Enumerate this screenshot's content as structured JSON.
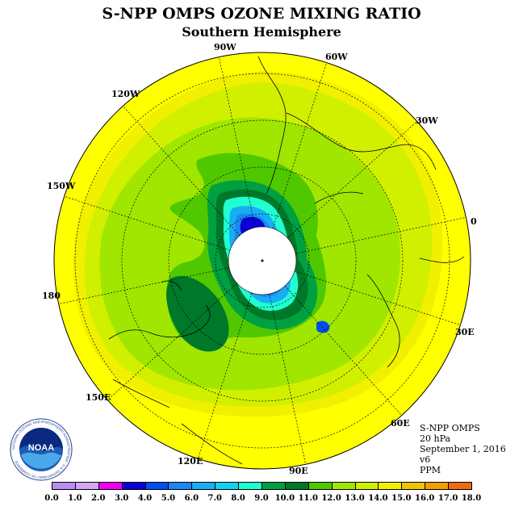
{
  "title": "S-NPP OMPS OZONE MIXING RATIO",
  "subtitle": "Southern Hemisphere",
  "longitude_labels": [
    "90W",
    "60W",
    "120W",
    "30W",
    "150W",
    "0",
    "180",
    "30E",
    "150E",
    "60E",
    "120E",
    "90E"
  ],
  "logo": {
    "text": "NOAA",
    "ring_text": "NATIONAL OCEANIC AND ATMOSPHERIC ADMINISTRATION · U.S. DEPARTMENT OF COMMERCE"
  },
  "info": {
    "instrument": "S-NPP OMPS",
    "pressure": "20 hPa",
    "date": "September 1, 2016",
    "version": "v6",
    "units": "PPM"
  },
  "colorbar": {
    "labels": [
      "0.0",
      "1.0",
      "2.0",
      "3.0",
      "4.0",
      "5.0",
      "6.0",
      "7.0",
      "8.0",
      "9.0",
      "10.0",
      "11.0",
      "12.0",
      "13.0",
      "14.0",
      "15.0",
      "16.0",
      "17.0",
      "18.0"
    ],
    "colors": [
      "#b98cf2",
      "#d2a6f5",
      "#ee00ee",
      "#0a00d8",
      "#0050f0",
      "#1a88f0",
      "#18aef4",
      "#10d2f0",
      "#20ffd2",
      "#00a040",
      "#00782a",
      "#50c800",
      "#a0e600",
      "#d0f000",
      "#f0f000",
      "#f0c400",
      "#f09e00",
      "#f06a10",
      "#f00000",
      "#a06030"
    ]
  },
  "map_colors": {
    "outer": "#ffff00",
    "band_13": "#f0f000",
    "band_12": "#d0f000",
    "band_11": "#a0e600",
    "band_10": "#50c800",
    "band_9": "#00a040",
    "band_8": "#00782a",
    "band_7": "#20ffd2",
    "band_6": "#18aef4",
    "band_5": "#1a88f0",
    "band_4": "#0050f0",
    "band_3": "#0a00d8",
    "no_data": "#ffffff"
  }
}
